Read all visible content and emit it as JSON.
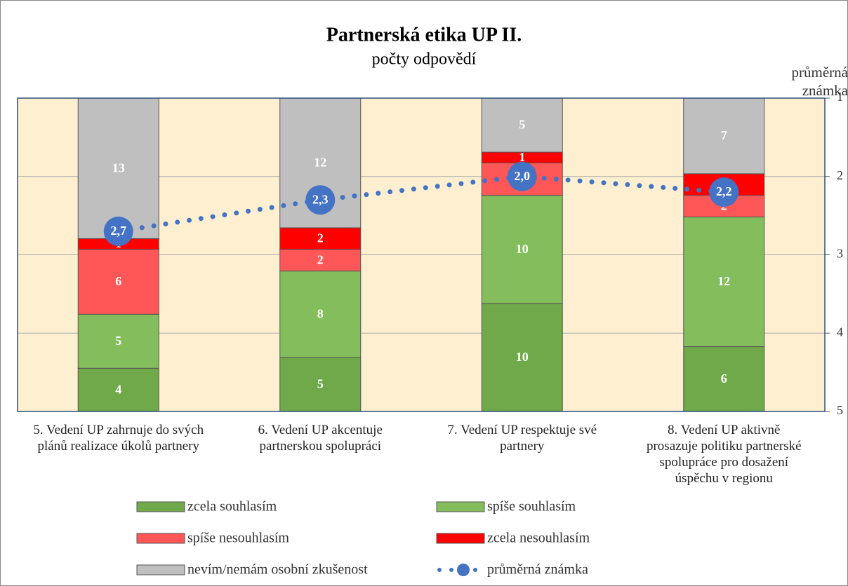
{
  "chart_data": {
    "type": "bar",
    "stacked": true,
    "title": "Partnerská etika UP II.",
    "subtitle": "počty odpovědí",
    "y2label": "průměrná známka",
    "categories": [
      "5. Vedení UP zahrnuje do svých plánů realizace úkolů partnery",
      "6. Vedení UP akcentuje partnerskou spolupráci",
      "7. Vedení UP respektuje své partnery",
      "8. Vedení UP aktivně prosazuje politiku partnerské spolupráce pro dosažení úspěchu v regionu"
    ],
    "series": [
      {
        "name": "zcela souhlasím",
        "color": "#6fa94a",
        "values": [
          4,
          5,
          10,
          6
        ]
      },
      {
        "name": "spíše souhlasím",
        "color": "#83bd5c",
        "values": [
          5,
          8,
          10,
          12
        ]
      },
      {
        "name": "spíše nesouhlasím",
        "color": "#ff5757",
        "values": [
          6,
          2,
          3,
          2
        ]
      },
      {
        "name": "zcela nesouhlasím",
        "color": "#ff0000",
        "values": [
          1,
          2,
          1,
          2
        ]
      },
      {
        "name": "nevím/nemám osobní zkušenost",
        "color": "#bfbfbf",
        "values": [
          13,
          12,
          5,
          7
        ]
      },
      {
        "name": "průměrná známka",
        "type": "line",
        "axis": "y2",
        "color": "#4472c4",
        "values": [
          2.7,
          2.3,
          2.0,
          2.2
        ],
        "value_labels": [
          "2,7",
          "2,3",
          "2,0",
          "2,2"
        ]
      }
    ],
    "ylim": [
      0,
      29
    ],
    "y2lim": [
      1,
      5
    ],
    "y2_reversed": true,
    "y2ticks": [
      1,
      2,
      3,
      4,
      5
    ],
    "grid": true,
    "legend": "bottom"
  }
}
